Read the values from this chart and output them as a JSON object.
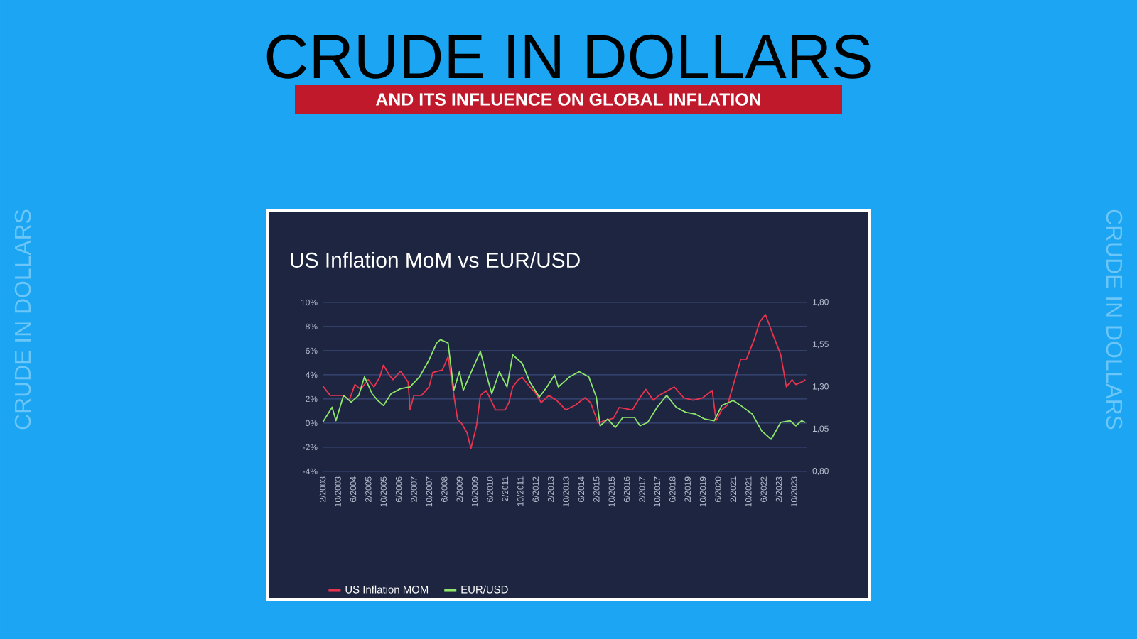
{
  "chart_data": {
    "type": "line",
    "title": "CRUDE IN DOLLARS",
    "subtitle": "AND ITS INFLUENCE ON GLOBAL INFLATION",
    "annotations": [
      "US Inflation MoM vs EUR/USD",
      "CRUDE IN DOLLARS",
      "CRUDE IN DOLLARS"
    ],
    "series": [
      {
        "name": "US Inflation MOM",
        "color": "#e8344e",
        "axis": "y",
        "x": [
          "2003-02",
          "2003-06",
          "2004-01",
          "2004-04",
          "2004-07",
          "2004-10",
          "2005-02",
          "2005-05",
          "2005-08",
          "2005-10",
          "2006-01",
          "2006-03",
          "2006-07",
          "2006-11",
          "2006-12",
          "2007-02",
          "2007-06",
          "2007-10",
          "2007-12",
          "2008-05",
          "2008-08",
          "2008-10",
          "2009-01",
          "2009-03",
          "2009-06",
          "2009-08",
          "2009-11",
          "2010-01",
          "2010-04",
          "2010-06",
          "2010-09",
          "2011-02",
          "2011-04",
          "2011-06",
          "2011-09",
          "2011-11",
          "2012-03",
          "2012-06",
          "2012-09",
          "2013-01",
          "2013-05",
          "2013-10",
          "2014-03",
          "2014-08",
          "2014-11",
          "2015-03",
          "2015-06",
          "2015-11",
          "2016-02",
          "2016-09",
          "2016-12",
          "2017-04",
          "2017-08",
          "2017-11",
          "2018-07",
          "2018-12",
          "2019-05",
          "2019-10",
          "2020-03",
          "2020-05",
          "2020-08",
          "2020-11",
          "2021-04",
          "2021-06",
          "2021-09",
          "2022-01",
          "2022-04",
          "2022-07",
          "2022-11",
          "2023-03",
          "2023-06",
          "2023-09",
          "2023-11",
          "2024-02",
          "2024-04"
        ],
        "values": [
          3.1,
          2.3,
          2.3,
          1.9,
          3.2,
          2.8,
          3.6,
          3.0,
          3.8,
          4.8,
          4.0,
          3.6,
          4.3,
          3.4,
          1.1,
          2.3,
          2.3,
          3.0,
          4.2,
          4.4,
          5.5,
          3.4,
          0.3,
          0.0,
          -0.8,
          -2.1,
          -0.2,
          2.3,
          2.7,
          2.1,
          1.1,
          1.1,
          1.7,
          3.0,
          3.6,
          3.8,
          3.0,
          2.5,
          1.7,
          2.3,
          1.9,
          1.1,
          1.5,
          2.1,
          1.7,
          0.0,
          0.2,
          0.4,
          1.3,
          1.1,
          1.9,
          2.8,
          1.9,
          2.3,
          3.0,
          2.1,
          1.9,
          2.1,
          2.7,
          0.2,
          1.1,
          1.5,
          4.2,
          5.3,
          5.3,
          6.9,
          8.4,
          9.0,
          7.3,
          5.7,
          3.0,
          3.6,
          3.2,
          3.4,
          3.6
        ]
      },
      {
        "name": "EUR/USD",
        "color": "#8ee66b",
        "axis": "y2",
        "x": [
          "2003-02",
          "2003-07",
          "2003-09",
          "2004-01",
          "2004-05",
          "2004-09",
          "2004-12",
          "2005-04",
          "2005-07",
          "2005-10",
          "2006-02",
          "2006-07",
          "2006-12",
          "2007-05",
          "2007-10",
          "2008-02",
          "2008-04",
          "2008-08",
          "2008-11",
          "2009-02",
          "2009-04",
          "2009-09",
          "2010-01",
          "2010-05",
          "2010-07",
          "2010-11",
          "2011-03",
          "2011-06",
          "2011-11",
          "2012-03",
          "2012-08",
          "2012-12",
          "2013-04",
          "2013-06",
          "2013-12",
          "2014-05",
          "2014-10",
          "2015-02",
          "2015-04",
          "2015-08",
          "2015-12",
          "2016-04",
          "2016-10",
          "2017-01",
          "2017-05",
          "2017-10",
          "2018-03",
          "2018-08",
          "2019-01",
          "2019-06",
          "2019-11",
          "2020-04",
          "2020-08",
          "2021-02",
          "2021-06",
          "2021-12",
          "2022-05",
          "2022-10",
          "2023-03",
          "2023-08",
          "2023-11",
          "2024-02",
          "2024-04"
        ],
        "values": [
          1.09,
          1.18,
          1.1,
          1.25,
          1.21,
          1.25,
          1.36,
          1.26,
          1.22,
          1.19,
          1.26,
          1.29,
          1.3,
          1.36,
          1.46,
          1.56,
          1.58,
          1.56,
          1.28,
          1.39,
          1.28,
          1.41,
          1.51,
          1.34,
          1.26,
          1.39,
          1.3,
          1.49,
          1.44,
          1.33,
          1.24,
          1.3,
          1.37,
          1.3,
          1.36,
          1.39,
          1.36,
          1.24,
          1.07,
          1.11,
          1.06,
          1.12,
          1.12,
          1.07,
          1.09,
          1.18,
          1.25,
          1.18,
          1.15,
          1.14,
          1.11,
          1.1,
          1.19,
          1.22,
          1.19,
          1.14,
          1.04,
          0.99,
          1.09,
          1.1,
          1.07,
          1.1,
          1.09
        ]
      }
    ],
    "xlim": [
      "2003-02",
      "2024-05"
    ],
    "xticks": [
      {
        "value": "2003-02",
        "label": "2/2003"
      },
      {
        "value": "2003-10",
        "label": "10/2003"
      },
      {
        "value": "2004-06",
        "label": "6/2004"
      },
      {
        "value": "2005-02",
        "label": "2/2005"
      },
      {
        "value": "2005-10",
        "label": "10/2005"
      },
      {
        "value": "2006-06",
        "label": "6/2006"
      },
      {
        "value": "2007-02",
        "label": "2/2007"
      },
      {
        "value": "2007-10",
        "label": "10/2007"
      },
      {
        "value": "2008-06",
        "label": "6/2008"
      },
      {
        "value": "2009-02",
        "label": "2/2009"
      },
      {
        "value": "2009-10",
        "label": "10/2009"
      },
      {
        "value": "2010-06",
        "label": "6/2010"
      },
      {
        "value": "2011-02",
        "label": "2/2011"
      },
      {
        "value": "2011-10",
        "label": "10/2011"
      },
      {
        "value": "2012-06",
        "label": "6/2012"
      },
      {
        "value": "2013-02",
        "label": "2/2013"
      },
      {
        "value": "2013-10",
        "label": "10/2013"
      },
      {
        "value": "2014-06",
        "label": "6/2014"
      },
      {
        "value": "2015-02",
        "label": "2/2015"
      },
      {
        "value": "2015-10",
        "label": "10/2015"
      },
      {
        "value": "2016-06",
        "label": "6/2016"
      },
      {
        "value": "2017-02",
        "label": "2/2017"
      },
      {
        "value": "2017-10",
        "label": "10/2017"
      },
      {
        "value": "2018-06",
        "label": "6/2018"
      },
      {
        "value": "2019-02",
        "label": "2/2019"
      },
      {
        "value": "2019-10",
        "label": "10/2019"
      },
      {
        "value": "2020-06",
        "label": "6/2020"
      },
      {
        "value": "2021-02",
        "label": "2/2021"
      },
      {
        "value": "2021-10",
        "label": "10/2021"
      },
      {
        "value": "2022-06",
        "label": "6/2022"
      },
      {
        "value": "2023-02",
        "label": "2/2023"
      },
      {
        "value": "2023-10",
        "label": "10/2023"
      }
    ],
    "ylim": [
      -4,
      10
    ],
    "yticks": [
      {
        "value": -4,
        "label": "-4%"
      },
      {
        "value": -2,
        "label": "-2%"
      },
      {
        "value": 0,
        "label": "0%"
      },
      {
        "value": 2,
        "label": "2%"
      },
      {
        "value": 4,
        "label": "4%"
      },
      {
        "value": 6,
        "label": "6%"
      },
      {
        "value": 8,
        "label": "8%"
      },
      {
        "value": 10,
        "label": "10%"
      }
    ],
    "y2lim": [
      0.8,
      1.8
    ],
    "y2ticks": [
      {
        "value": 0.8,
        "label": "0,80"
      },
      {
        "value": 1.05,
        "label": "1,05"
      },
      {
        "value": 1.3,
        "label": "1,30"
      },
      {
        "value": 1.55,
        "label": "1,55"
      },
      {
        "value": 1.8,
        "label": "1,80"
      }
    ],
    "grid": "y",
    "legend": "bottom",
    "line_style": "solid"
  }
}
